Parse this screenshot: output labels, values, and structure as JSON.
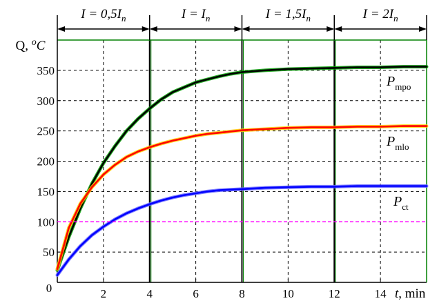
{
  "chart_data": {
    "type": "line",
    "title": "",
    "xlabel": {
      "var": "t",
      "unit": ", min"
    },
    "ylabel": {
      "prefix": "Q, ",
      "sup": "o",
      "var": "C"
    },
    "xlim": [
      0,
      16
    ],
    "ylim": [
      0,
      400
    ],
    "x_ticks": [
      0,
      2,
      4,
      6,
      8,
      10,
      12,
      14
    ],
    "y_ticks": [
      50,
      100,
      150,
      200,
      250,
      300,
      350
    ],
    "origin_label": "0",
    "grid": true,
    "bands": [
      {
        "x_start": 0,
        "x_end": 4,
        "label_main": "I = 0,5I",
        "label_sub": "n"
      },
      {
        "x_start": 4,
        "x_end": 8,
        "label_main": "I = I",
        "label_sub": "n"
      },
      {
        "x_start": 8,
        "x_end": 12,
        "label_main": "I = 1,5I",
        "label_sub": "n"
      },
      {
        "x_start": 12,
        "x_end": 16,
        "label_main": "I = 2I",
        "label_sub": "n"
      }
    ],
    "series": [
      {
        "name": "P",
        "sub": "mpo",
        "color": "#000000",
        "accent": "#00a000",
        "x": [
          0,
          0.5,
          1,
          1.5,
          2,
          2.5,
          3,
          3.5,
          4,
          4.5,
          5,
          5.5,
          6,
          6.5,
          7,
          7.5,
          8,
          9,
          10,
          11,
          12,
          13,
          14,
          15,
          16
        ],
        "y": [
          20,
          75,
          122,
          163,
          197,
          225,
          250,
          270,
          287,
          302,
          314,
          322,
          330,
          335,
          340,
          344,
          347,
          350,
          352,
          353,
          354,
          355,
          355,
          356,
          356
        ]
      },
      {
        "name": "P",
        "sub": "mlo",
        "color": "#ff0000",
        "accent": "#ffd000",
        "x": [
          0,
          0.5,
          1,
          1.5,
          2,
          2.5,
          3,
          3.5,
          4,
          4.5,
          5,
          5.5,
          6,
          6.5,
          7,
          7.5,
          8,
          9,
          10,
          11,
          12,
          13,
          14,
          15,
          16
        ],
        "y": [
          22,
          90,
          130,
          157,
          178,
          194,
          207,
          216,
          223,
          229,
          234,
          238,
          242,
          245,
          247,
          249,
          251,
          253,
          255,
          256,
          256,
          257,
          257,
          258,
          258
        ]
      },
      {
        "name": "P",
        "sub": "ct",
        "color": "#0000ff",
        "accent": "#6666ff",
        "x": [
          0,
          0.5,
          1,
          1.5,
          2,
          2.5,
          3,
          3.5,
          4,
          4.5,
          5,
          5.5,
          6,
          6.5,
          7,
          7.5,
          8,
          9,
          10,
          11,
          12,
          13,
          14,
          15,
          16
        ],
        "y": [
          12,
          38,
          60,
          78,
          92,
          104,
          114,
          122,
          129,
          135,
          140,
          144,
          147,
          150,
          152,
          153,
          154,
          156,
          157,
          158,
          158,
          159,
          159,
          159,
          159
        ]
      },
      {
        "name": "",
        "sub": "",
        "color": "#ff00ff",
        "style": "dashed",
        "x": [
          0,
          16
        ],
        "y": [
          100,
          100
        ]
      }
    ]
  }
}
